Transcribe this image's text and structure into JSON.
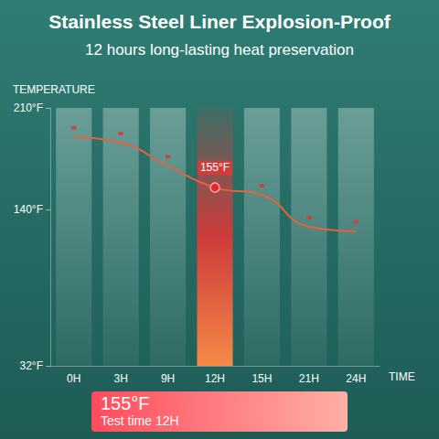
{
  "chart_data": {
    "type": "line",
    "title": "Stainless Steel Liner Explosion-Proof",
    "subtitle": "12 hours long-lasting heat preservation",
    "y_label": "TEMPERATURE",
    "x_label": "TIME",
    "categories": [
      "0H",
      "3H",
      "9H",
      "12H",
      "15H",
      "21H",
      "24H"
    ],
    "values": [
      190,
      186,
      170,
      155,
      150,
      128,
      125
    ],
    "color": "#e8623a",
    "ylim": [
      32,
      210
    ],
    "yticks": [
      {
        "value": 32,
        "label": "32°F"
      },
      {
        "value": 140,
        "label": "140°F"
      },
      {
        "value": 210,
        "label": "210°F"
      }
    ],
    "grid": false,
    "annotations": [
      {
        "x": "12H",
        "y": 155,
        "text": "155°F"
      }
    ],
    "badge": {
      "title": "155°F",
      "text": "Test time 12H"
    }
  }
}
